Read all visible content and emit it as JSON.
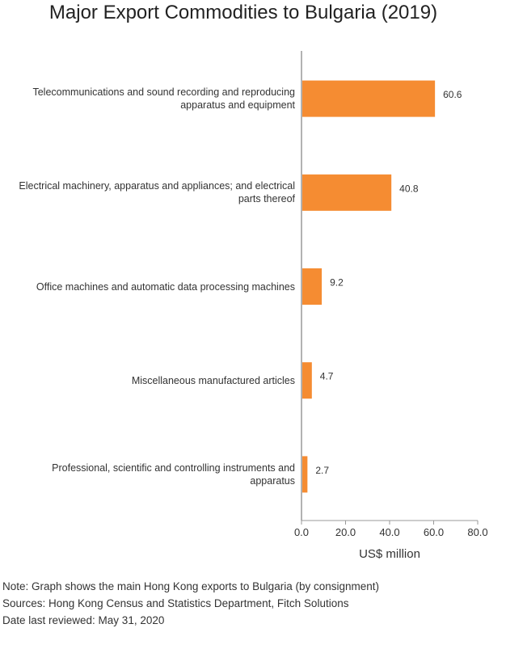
{
  "chart_data": {
    "type": "bar",
    "orientation": "horizontal",
    "title": "Major Export Commodities to Bulgaria (2019)",
    "categories": [
      "Telecommunications and sound recording and reproducing apparatus and equipment",
      "Electrical machinery, apparatus and appliances; and electrical parts thereof",
      "Office machines and automatic data processing machines",
      "Miscellaneous manufactured articles",
      "Professional, scientific and controlling instruments and apparatus"
    ],
    "values": [
      60.6,
      40.8,
      9.2,
      4.7,
      2.7
    ],
    "value_labels": [
      "60.6",
      "40.8",
      "9.2",
      "4.7",
      "2.7"
    ],
    "xlabel": "US$ million",
    "xlim": [
      0,
      80
    ],
    "xticks": [
      "0.0",
      "20.0",
      "40.0",
      "60.0",
      "80.0"
    ],
    "bar_color": "#f58c32",
    "grid": false
  },
  "notes": [
    "Note: Graph shows the main Hong Kong exports to Bulgaria (by consignment)",
    "Sources: Hong Kong Census and Statistics Department, Fitch Solutions",
    "Date last reviewed: May 31, 2020"
  ]
}
